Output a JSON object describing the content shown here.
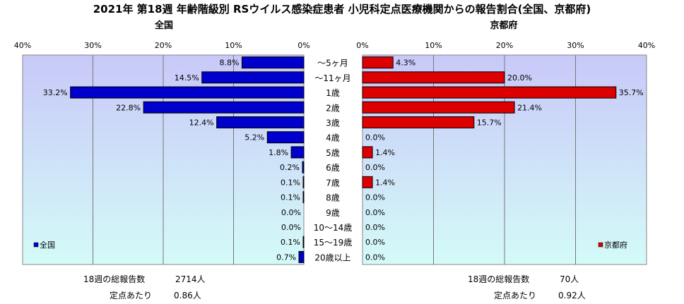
{
  "title": "2021年 第18週 年齢階級別 RSウイルス感染症患者 小児科定点医療機関からの報告割合(全国、京都府)",
  "colors": {
    "plot_gradient_top": "#c8c8f8",
    "plot_gradient_bottom": "#d4fbf8",
    "national_bar": "#0000cc",
    "kyoto_bar": "#dd0000",
    "bar_border": "#000000"
  },
  "chart_data": [
    {
      "type": "bar",
      "orientation": "horizontal-reversed",
      "title": "全国",
      "legend": "全国",
      "legend_position": "bottom-left",
      "xlim": [
        0,
        40
      ],
      "x_ticks": [
        "40%",
        "30%",
        "20%",
        "10%",
        "0%"
      ],
      "grid": true,
      "categories": [
        "～5ヶ月",
        "～11ヶ月",
        "1歳",
        "2歳",
        "3歳",
        "4歳",
        "5歳",
        "6歳",
        "7歳",
        "8歳",
        "9歳",
        "10～14歳",
        "15～19歳",
        "20歳以上"
      ],
      "values": [
        8.8,
        14.5,
        33.2,
        22.8,
        12.4,
        5.2,
        1.8,
        0.2,
        0.1,
        0.1,
        0.0,
        0.0,
        0.1,
        0.7
      ],
      "labels": [
        "8.8%",
        "14.5%",
        "33.2%",
        "22.8%",
        "12.4%",
        "5.2%",
        "1.8%",
        "0.2%",
        "0.1%",
        "0.1%",
        "0.0%",
        "0.0%",
        "0.1%",
        "0.7%"
      ]
    },
    {
      "type": "bar",
      "orientation": "horizontal",
      "title": "京都府",
      "legend": "京都府",
      "legend_position": "bottom-right",
      "xlim": [
        0,
        40
      ],
      "x_ticks": [
        "0%",
        "10%",
        "20%",
        "30%",
        "40%"
      ],
      "grid": true,
      "categories": [
        "～5ヶ月",
        "～11ヶ月",
        "1歳",
        "2歳",
        "3歳",
        "4歳",
        "5歳",
        "6歳",
        "7歳",
        "8歳",
        "9歳",
        "10～14歳",
        "15～19歳",
        "20歳以上"
      ],
      "values": [
        4.3,
        20.0,
        35.7,
        21.4,
        15.7,
        0.0,
        1.4,
        0.0,
        1.4,
        0.0,
        0.0,
        0.0,
        0.0,
        0.0
      ],
      "labels": [
        "4.3%",
        "20.0%",
        "35.7%",
        "21.4%",
        "15.7%",
        "0.0%",
        "1.4%",
        "0.0%",
        "1.4%",
        "0.0%",
        "0.0%",
        "0.0%",
        "0.0%",
        "0.0%"
      ]
    }
  ],
  "footer": {
    "national": {
      "total_label": "18週の総報告数",
      "total_value": "2714人",
      "per_label": "定点あたり",
      "per_value": "0.86人"
    },
    "kyoto": {
      "total_label": "18週の総報告数",
      "total_value": "70人",
      "per_label": "定点あたり",
      "per_value": "0.92人"
    }
  }
}
